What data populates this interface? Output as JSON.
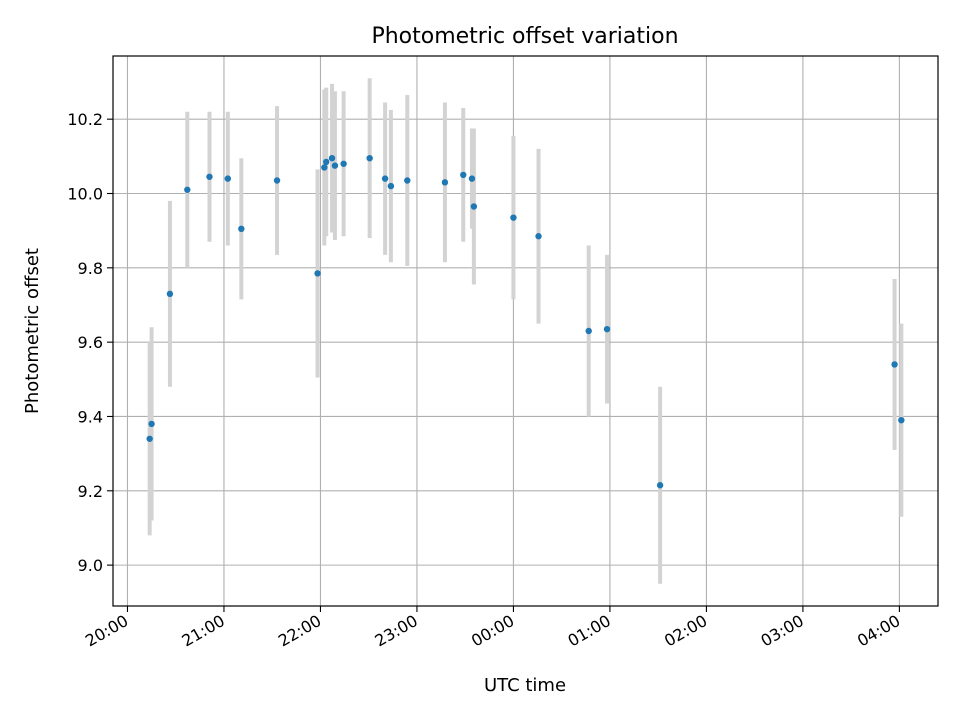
{
  "chart_data": {
    "type": "scatter",
    "title": "Photometric offset variation",
    "xlabel": "UTC time",
    "ylabel": "Photometric offset",
    "x_unit": "UTC time (hours from 20:00)",
    "xlim": [
      -0.15,
      8.4
    ],
    "ylim": [
      8.89,
      10.37
    ],
    "xticks": [
      {
        "value": 0,
        "label": "20:00"
      },
      {
        "value": 1,
        "label": "21:00"
      },
      {
        "value": 2,
        "label": "22:00"
      },
      {
        "value": 3,
        "label": "23:00"
      },
      {
        "value": 4,
        "label": "00:00"
      },
      {
        "value": 5,
        "label": "01:00"
      },
      {
        "value": 6,
        "label": "02:00"
      },
      {
        "value": 7,
        "label": "03:00"
      },
      {
        "value": 8,
        "label": "04:00"
      }
    ],
    "yticks": [
      {
        "value": 9.0,
        "label": "9.0"
      },
      {
        "value": 9.2,
        "label": "9.2"
      },
      {
        "value": 9.4,
        "label": "9.4"
      },
      {
        "value": 9.6,
        "label": "9.6"
      },
      {
        "value": 9.8,
        "label": "9.8"
      },
      {
        "value": 10.0,
        "label": "10.0"
      },
      {
        "value": 10.2,
        "label": "10.2"
      }
    ],
    "grid": true,
    "colors": {
      "points": "#1f77b4",
      "errorbars": "#d3d3d3",
      "grid": "#b0b0b0"
    },
    "points": [
      {
        "x": 0.23,
        "y": 9.34,
        "err": 0.26
      },
      {
        "x": 0.25,
        "y": 9.38,
        "err": 0.26
      },
      {
        "x": 0.44,
        "y": 9.73,
        "err": 0.25
      },
      {
        "x": 0.62,
        "y": 10.01,
        "err": 0.21
      },
      {
        "x": 0.85,
        "y": 10.045,
        "err": 0.175
      },
      {
        "x": 1.04,
        "y": 10.04,
        "err": 0.18
      },
      {
        "x": 1.18,
        "y": 9.905,
        "err": 0.19
      },
      {
        "x": 1.55,
        "y": 10.035,
        "err": 0.2
      },
      {
        "x": 1.97,
        "y": 9.785,
        "err": 0.28
      },
      {
        "x": 2.04,
        "y": 10.07,
        "err": 0.21
      },
      {
        "x": 2.06,
        "y": 10.085,
        "err": 0.2
      },
      {
        "x": 2.12,
        "y": 10.095,
        "err": 0.2
      },
      {
        "x": 2.15,
        "y": 10.075,
        "err": 0.2
      },
      {
        "x": 2.24,
        "y": 10.08,
        "err": 0.195
      },
      {
        "x": 2.51,
        "y": 10.095,
        "err": 0.215
      },
      {
        "x": 2.67,
        "y": 10.04,
        "err": 0.205
      },
      {
        "x": 2.73,
        "y": 10.02,
        "err": 0.205
      },
      {
        "x": 2.9,
        "y": 10.035,
        "err": 0.23
      },
      {
        "x": 3.29,
        "y": 10.03,
        "err": 0.215
      },
      {
        "x": 3.48,
        "y": 10.05,
        "err": 0.18
      },
      {
        "x": 3.57,
        "y": 10.04,
        "err": 0.135
      },
      {
        "x": 3.59,
        "y": 9.965,
        "err": 0.21
      },
      {
        "x": 4.0,
        "y": 9.935,
        "err": 0.22
      },
      {
        "x": 4.26,
        "y": 9.885,
        "err": 0.235
      },
      {
        "x": 4.78,
        "y": 9.63,
        "err": 0.23
      },
      {
        "x": 4.97,
        "y": 9.635,
        "err": 0.2
      },
      {
        "x": 5.52,
        "y": 9.215,
        "err": 0.265
      },
      {
        "x": 7.95,
        "y": 9.54,
        "err": 0.23
      },
      {
        "x": 8.02,
        "y": 9.39,
        "err": 0.26
      }
    ]
  }
}
